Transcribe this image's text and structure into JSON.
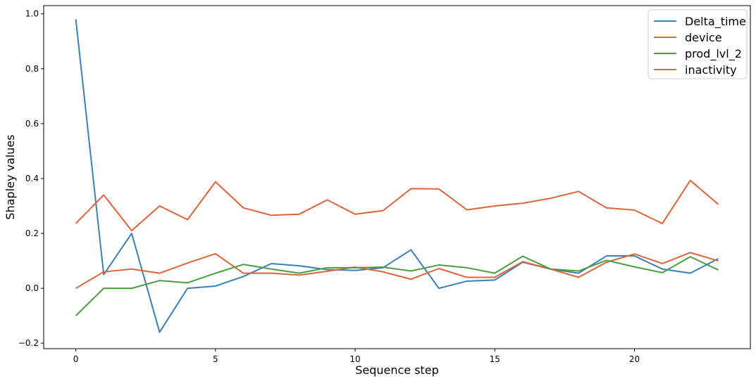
{
  "chart_data": {
    "type": "line",
    "title": "",
    "xlabel": "Sequence step",
    "ylabel": "Shapley values",
    "xlim": [
      -1.15,
      24.15
    ],
    "ylim": [
      -0.22,
      1.03
    ],
    "xticks": [
      0,
      5,
      10,
      15,
      20
    ],
    "yticks": [
      -0.2,
      0.0,
      0.2,
      0.4,
      0.6,
      0.8,
      1.0
    ],
    "xtick_labels": [
      "0",
      "5",
      "10",
      "15",
      "20"
    ],
    "ytick_labels": [
      "−0.2",
      "0.0",
      "0.2",
      "0.4",
      "0.6",
      "0.8",
      "1.0"
    ],
    "grid": false,
    "legend_position": "top-right",
    "x": [
      0,
      1,
      2,
      3,
      4,
      5,
      6,
      7,
      8,
      9,
      10,
      11,
      12,
      13,
      14,
      15,
      16,
      17,
      18,
      19,
      20,
      21,
      22,
      23
    ],
    "series": [
      {
        "name": "Delta_time",
        "color": "#3a7fb8",
        "values": [
          0.98,
          0.05,
          0.2,
          -0.16,
          0.0,
          0.008,
          0.043,
          0.09,
          0.082,
          0.068,
          0.065,
          0.075,
          0.14,
          0.0,
          0.026,
          0.03,
          0.095,
          0.07,
          0.055,
          0.118,
          0.118,
          0.07,
          0.055,
          0.108
        ]
      },
      {
        "name": "device",
        "color": "#e0643a",
        "values": [
          0.0,
          0.06,
          0.07,
          0.055,
          0.092,
          0.126,
          0.055,
          0.055,
          0.048,
          0.062,
          0.077,
          0.06,
          0.033,
          0.072,
          0.04,
          0.04,
          0.097,
          0.07,
          0.04,
          0.095,
          0.125,
          0.09,
          0.13,
          0.1
        ]
      },
      {
        "name": "prod_lvl_2",
        "color": "#4a9e3f",
        "values": [
          -0.1,
          0.0,
          0.0,
          0.028,
          0.02,
          0.055,
          0.087,
          0.07,
          0.055,
          0.075,
          0.075,
          0.077,
          0.063,
          0.085,
          0.075,
          0.055,
          0.117,
          0.07,
          0.063,
          0.102,
          0.078,
          0.057,
          0.115,
          0.067
        ]
      },
      {
        "name": "inactivity",
        "color": "#e0643a",
        "values": [
          0.236,
          0.34,
          0.21,
          0.3,
          0.25,
          0.388,
          0.293,
          0.266,
          0.27,
          0.322,
          0.27,
          0.283,
          0.363,
          0.362,
          0.286,
          0.3,
          0.31,
          0.328,
          0.353,
          0.293,
          0.285,
          0.236,
          0.393,
          0.306
        ]
      }
    ]
  }
}
